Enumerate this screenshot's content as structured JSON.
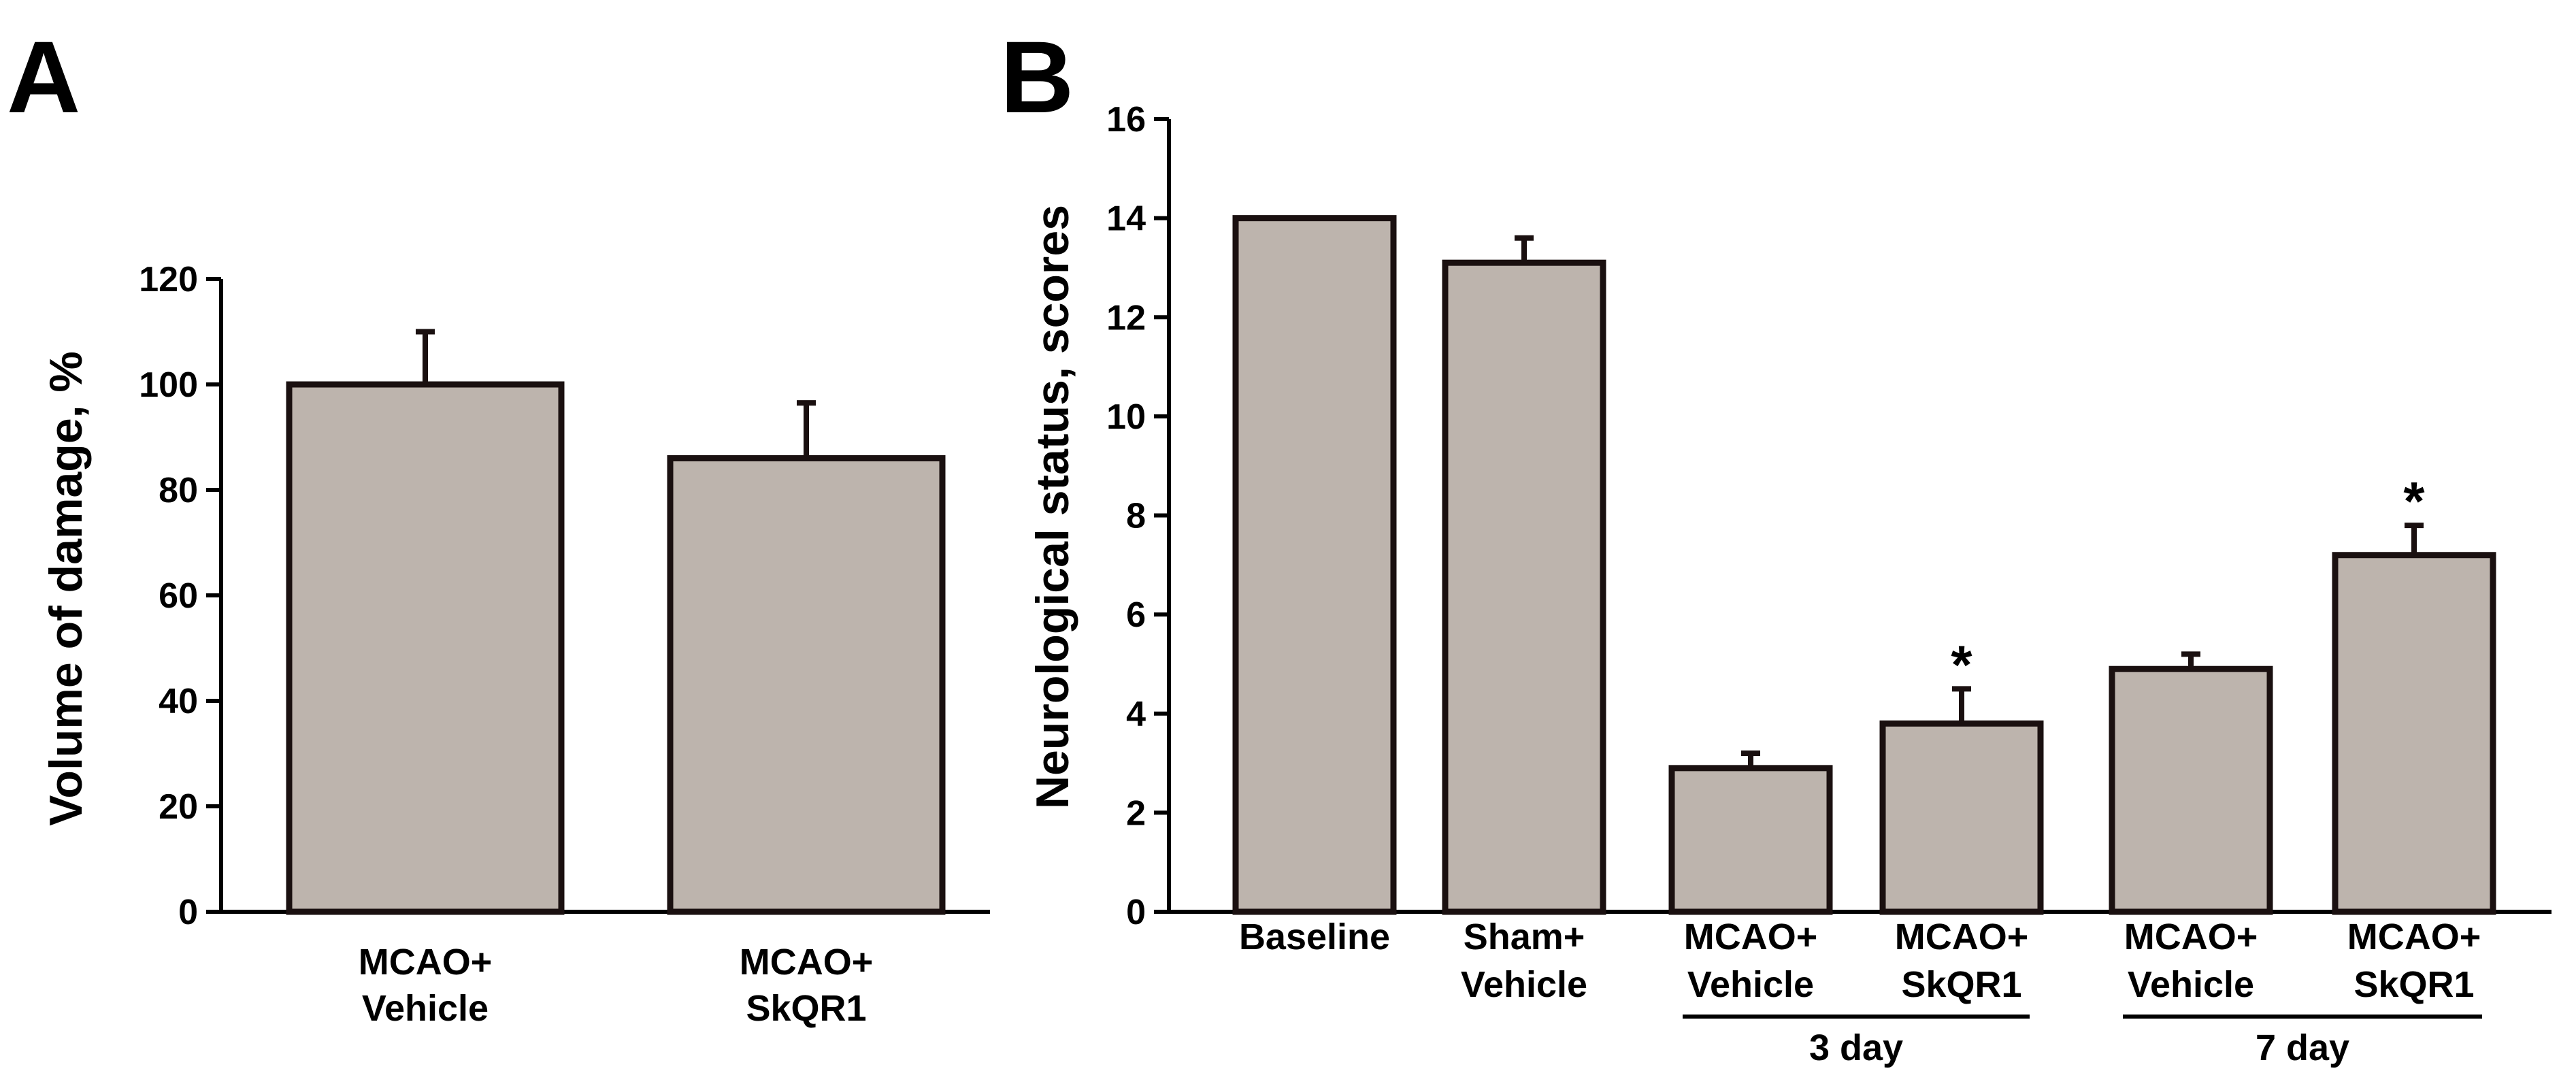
{
  "colors": {
    "bar_fill": "#bdb4ad",
    "bar_stroke": "#1a1010"
  },
  "chart_data": [
    {
      "panel": "A",
      "type": "bar",
      "ylabel": "Volume of damage, %",
      "ylim": [
        0,
        120
      ],
      "yticks": [
        0,
        20,
        40,
        60,
        80,
        100,
        120
      ],
      "categories": [
        [
          "MCAO+",
          "Vehicle"
        ],
        [
          "MCAO+",
          "SkQR1"
        ]
      ],
      "values": [
        100,
        86
      ],
      "errors": [
        10,
        10.5
      ],
      "significance": [
        "",
        ""
      ],
      "groups": []
    },
    {
      "panel": "B",
      "type": "bar",
      "ylabel": "Neurological status, scores",
      "ylim": [
        0,
        16
      ],
      "yticks": [
        0,
        2,
        4,
        6,
        8,
        10,
        12,
        14,
        16
      ],
      "categories": [
        [
          "Baseline"
        ],
        [
          "Sham+",
          "Vehicle"
        ],
        [
          "MCAO+",
          "Vehicle"
        ],
        [
          "MCAO+",
          "SkQR1"
        ],
        [
          "MCAO+",
          "Vehicle"
        ],
        [
          "MCAO+",
          "SkQR1"
        ]
      ],
      "values": [
        14,
        13.1,
        2.9,
        3.8,
        4.9,
        7.2
      ],
      "errors": [
        0,
        0.5,
        0.3,
        0.7,
        0.3,
        0.6
      ],
      "significance": [
        "",
        "",
        "",
        "*",
        "",
        "*"
      ],
      "groups": [
        {
          "label": "3 day",
          "from": 2,
          "to": 3
        },
        {
          "label": "7 day",
          "from": 4,
          "to": 5
        }
      ]
    }
  ]
}
